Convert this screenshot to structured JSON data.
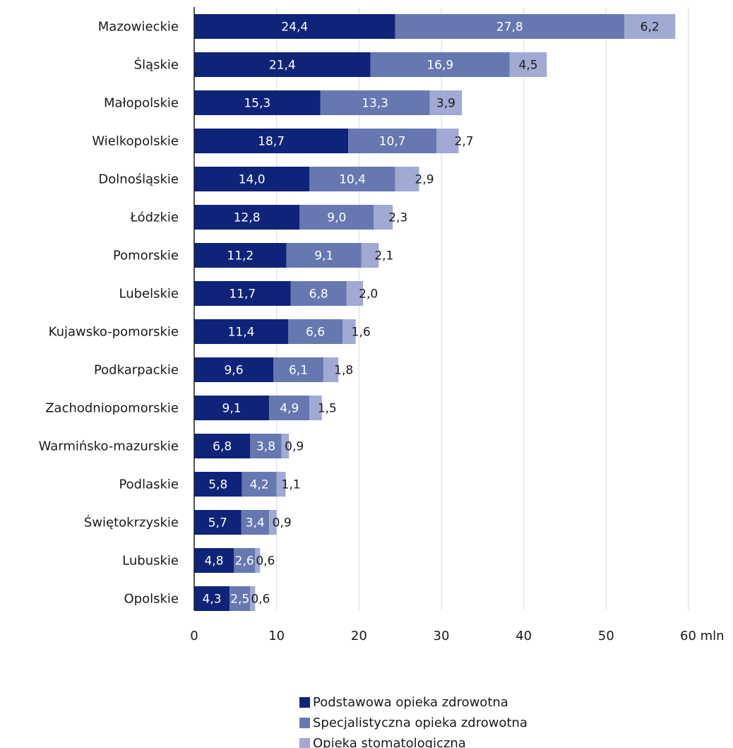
{
  "chart_data": {
    "type": "bar",
    "orientation": "horizontal",
    "stacked": true,
    "categories": [
      "Mazowieckie",
      "Śląskie",
      "Małopolskie",
      "Wielkopolskie",
      "Dolnośląskie",
      "Łódzkie",
      "Pomorskie",
      "Lubelskie",
      "Kujawsko-pomorskie",
      "Podkarpackie",
      "Zachodniopomorskie",
      "Warmińsko-mazurskie",
      "Podlaskie",
      "Świętokrzyskie",
      "Lubuskie",
      "Opolskie"
    ],
    "series": [
      {
        "name": "Podstawowa opieka zdrowotna",
        "color": "#0f2479",
        "values": [
          24.4,
          21.4,
          15.3,
          18.7,
          14.0,
          12.8,
          11.2,
          11.7,
          11.4,
          9.6,
          9.1,
          6.8,
          5.8,
          5.7,
          4.8,
          4.3
        ],
        "labels": [
          "24,4",
          "21,4",
          "15,3",
          "18,7",
          "14,0",
          "12,8",
          "11,2",
          "11,7",
          "11,4",
          "9,6",
          "9,1",
          "6,8",
          "5,8",
          "5,7",
          "4,8",
          "4,3"
        ]
      },
      {
        "name": "Specjalistyczna opieka zdrowotna",
        "color": "#6778b0",
        "values": [
          27.8,
          16.9,
          13.3,
          10.7,
          10.4,
          9.0,
          9.1,
          6.8,
          6.6,
          6.1,
          4.9,
          3.8,
          4.2,
          3.4,
          2.6,
          2.5
        ],
        "labels": [
          "27,8",
          "16,9",
          "13,3",
          "10,7",
          "10,4",
          "9,0",
          "9,1",
          "6,8",
          "6,6",
          "6,1",
          "4,9",
          "3,8",
          "4,2",
          "3,4",
          "2,6",
          "2,5"
        ]
      },
      {
        "name": "Opieka stomatologiczna",
        "color": "#a0aad3",
        "values": [
          6.2,
          4.5,
          3.9,
          2.7,
          2.9,
          2.3,
          2.1,
          2.0,
          1.6,
          1.8,
          1.5,
          0.9,
          1.1,
          0.9,
          0.6,
          0.6
        ],
        "labels": [
          "6,2",
          "4,5",
          "3,9",
          "2,7",
          "2,9",
          "2,3",
          "2,1",
          "2,0",
          "1,6",
          "1,8",
          "1,5",
          "0,9",
          "1,1",
          "0,9",
          "0,6",
          "0,6"
        ]
      }
    ],
    "x_ticks": [
      0,
      10,
      20,
      30,
      40,
      50,
      60
    ],
    "x_tick_labels": [
      "0",
      "10",
      "20",
      "30",
      "40",
      "50",
      "60 mln"
    ],
    "xlim": [
      0,
      60
    ],
    "grid": "vertical",
    "legend_position": "bottom"
  }
}
